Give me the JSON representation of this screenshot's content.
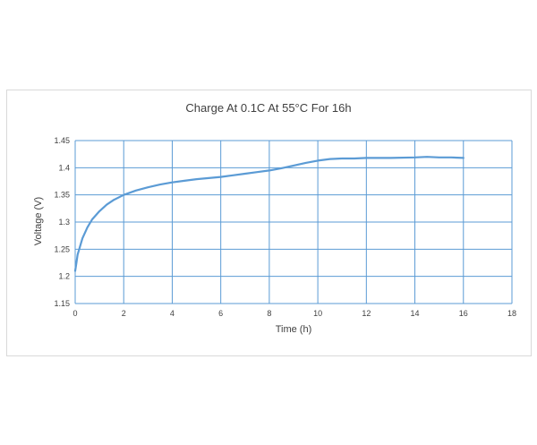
{
  "chart_data": {
    "type": "line",
    "title": "Charge At 0.1C At 55°C For 16h",
    "xlabel": "Time (h)",
    "ylabel": "Voltage (V)",
    "xlim": [
      0,
      18
    ],
    "ylim": [
      1.15,
      1.45
    ],
    "xticks": [
      0,
      2,
      4,
      6,
      8,
      10,
      12,
      14,
      16,
      18
    ],
    "yticks": [
      1.15,
      1.2,
      1.25,
      1.3,
      1.35,
      1.4,
      1.45
    ],
    "ytick_labels": [
      "1.15",
      "1.2",
      "1.25",
      "1.3",
      "1.35",
      "1.4",
      "1.45"
    ],
    "grid": true,
    "legend": "none",
    "series": [
      {
        "color": "#5b9bd5",
        "x": [
          0,
          0.05,
          0.1,
          0.2,
          0.3,
          0.5,
          0.7,
          1.0,
          1.3,
          1.6,
          2.0,
          2.5,
          3.0,
          3.5,
          4.0,
          4.5,
          5.0,
          5.5,
          6.0,
          6.5,
          7.0,
          7.5,
          8.0,
          8.5,
          9.0,
          9.5,
          10.0,
          10.5,
          11.0,
          11.5,
          12.0,
          13.0,
          14.0,
          14.5,
          15.0,
          15.5,
          16.0
        ],
        "y": [
          1.21,
          1.225,
          1.24,
          1.255,
          1.27,
          1.29,
          1.305,
          1.32,
          1.332,
          1.341,
          1.35,
          1.358,
          1.364,
          1.369,
          1.373,
          1.376,
          1.379,
          1.381,
          1.383,
          1.386,
          1.389,
          1.392,
          1.395,
          1.399,
          1.404,
          1.409,
          1.413,
          1.416,
          1.417,
          1.417,
          1.418,
          1.418,
          1.419,
          1.42,
          1.419,
          1.419,
          1.418
        ]
      }
    ]
  }
}
